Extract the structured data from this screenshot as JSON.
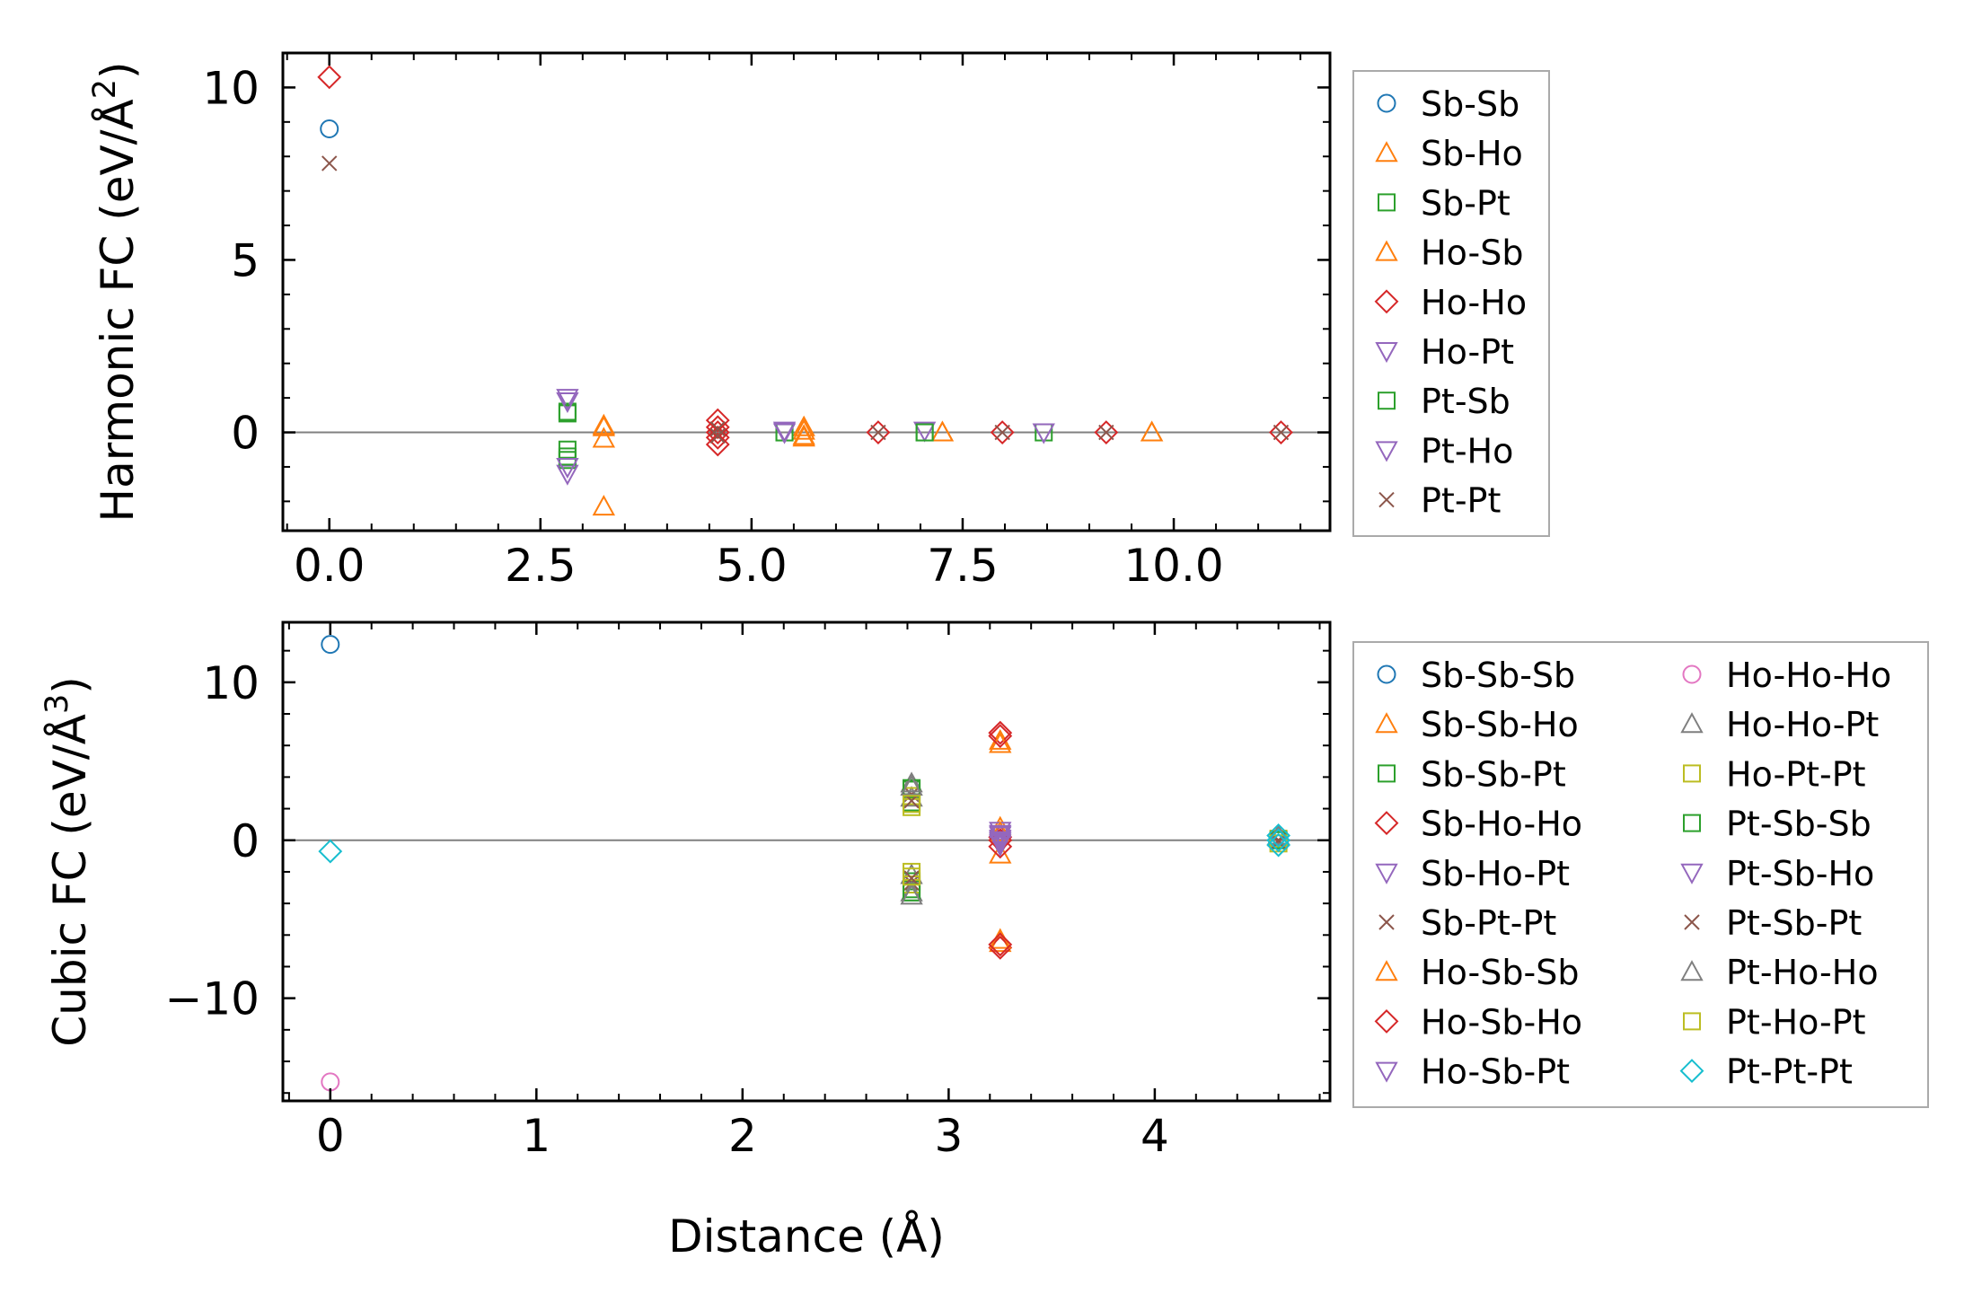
{
  "colors": {
    "C0": "#1f77b4",
    "C1": "#ff7f0e",
    "C2": "#2ca02c",
    "C3": "#d62728",
    "C4": "#9467bd",
    "C5": "#8c564b",
    "C6": "#e377c2",
    "C7": "#7f7f7f",
    "C8": "#bcbd22",
    "C9": "#17becf",
    "zero_line": "#808080",
    "legend_border": "#aaaaaa"
  },
  "chart_data": [
    {
      "type": "scatter",
      "ylabel_prefix": "Harmonic FC (eV/Å",
      "ylabel_sup": "2",
      "ylabel_suffix": ")",
      "xlabel": "",
      "xlim": [
        -0.55,
        11.85
      ],
      "ylim": [
        -2.85,
        11.0
      ],
      "xticks": [
        0.0,
        2.5,
        5.0,
        7.5,
        10.0
      ],
      "xtick_labels": [
        "0.0",
        "2.5",
        "5.0",
        "7.5",
        "10.0"
      ],
      "xminor": 0.5,
      "yticks": [
        0,
        5,
        10
      ],
      "ytick_labels": [
        "0",
        "5",
        "10"
      ],
      "yminor": 1,
      "zero_line": true,
      "legend_columns": 1,
      "legend_location": "outside-right",
      "series": [
        {
          "name": "Sb-Sb",
          "marker": "circle",
          "color": "C0",
          "x": [
            0.0
          ],
          "y": [
            8.8
          ]
        },
        {
          "name": "Sb-Ho",
          "marker": "triangle-up",
          "color": "C1",
          "x": [
            3.25,
            3.25,
            3.25,
            5.62,
            5.62,
            7.26,
            9.74
          ],
          "y": [
            0.15,
            -0.18,
            -2.15,
            0.15,
            -0.1,
            0.0,
            0.0
          ]
        },
        {
          "name": "Sb-Pt",
          "marker": "square",
          "color": "C2",
          "x": [
            2.82,
            2.82,
            2.82,
            5.39,
            7.05,
            8.46
          ],
          "y": [
            0.6,
            -0.5,
            -0.8,
            0.0,
            0.0,
            0.0
          ]
        },
        {
          "name": "Ho-Sb",
          "marker": "triangle-up",
          "color": "C1",
          "x": [
            3.25,
            5.62,
            5.62,
            7.26,
            9.74
          ],
          "y": [
            0.2,
            0.05,
            -0.15,
            0.0,
            0.0
          ]
        },
        {
          "name": "Ho-Ho",
          "marker": "diamond",
          "color": "C3",
          "x": [
            0.0,
            4.6,
            4.6,
            4.6,
            4.6,
            4.6,
            6.5,
            7.97,
            9.2,
            11.27
          ],
          "y": [
            10.3,
            0.35,
            0.15,
            0.0,
            -0.15,
            -0.35,
            0.0,
            0.0,
            0.0,
            0.0
          ]
        },
        {
          "name": "Ho-Pt",
          "marker": "triangle-down",
          "color": "C4",
          "x": [
            2.82,
            2.82,
            5.39,
            7.05,
            8.46
          ],
          "y": [
            1.0,
            -1.2,
            0.05,
            0.05,
            0.0
          ]
        },
        {
          "name": "Pt-Sb",
          "marker": "square",
          "color": "C2",
          "x": [
            2.82,
            2.82,
            5.39,
            7.05
          ],
          "y": [
            0.55,
            -0.7,
            0.0,
            0.0
          ]
        },
        {
          "name": "Pt-Ho",
          "marker": "triangle-down",
          "color": "C4",
          "x": [
            2.82,
            2.82,
            5.39
          ],
          "y": [
            0.9,
            -1.0,
            0.0
          ]
        },
        {
          "name": "Pt-Pt",
          "marker": "x",
          "color": "C5",
          "x": [
            0.0,
            4.6,
            4.6,
            6.5,
            7.97,
            9.2,
            11.27
          ],
          "y": [
            7.8,
            0.1,
            -0.1,
            0.0,
            0.0,
            0.0,
            0.0
          ]
        }
      ]
    },
    {
      "type": "scatter",
      "ylabel_prefix": "Cubic FC (eV/Å",
      "ylabel_sup": "3",
      "ylabel_suffix": ")",
      "xlabel": "Distance (Å)",
      "xlim": [
        -0.23,
        4.85
      ],
      "ylim": [
        -16.5,
        13.8
      ],
      "xticks": [
        0,
        1,
        2,
        3,
        4
      ],
      "xtick_labels": [
        "0",
        "1",
        "2",
        "3",
        "4"
      ],
      "xminor": 0.2,
      "yticks": [
        -10,
        0,
        10
      ],
      "ytick_labels": [
        "−10",
        "0",
        "10"
      ],
      "yminor": 2,
      "zero_line": true,
      "legend_columns": 2,
      "legend_location": "outside-right",
      "series": [
        {
          "name": "Sb-Sb-Sb",
          "marker": "circle",
          "color": "C0",
          "x": [
            0.0
          ],
          "y": [
            12.4
          ]
        },
        {
          "name": "Sb-Sb-Ho",
          "marker": "triangle-up",
          "color": "C1",
          "x": [
            3.25,
            3.25,
            3.25,
            3.25
          ],
          "y": [
            6.3,
            0.8,
            -0.9,
            -6.5
          ]
        },
        {
          "name": "Sb-Sb-Pt",
          "marker": "square",
          "color": "C2",
          "x": [
            2.82,
            2.82,
            2.82,
            2.82
          ],
          "y": [
            3.2,
            2.4,
            -2.6,
            -3.1
          ]
        },
        {
          "name": "Sb-Ho-Ho",
          "marker": "diamond",
          "color": "C3",
          "x": [
            3.25,
            3.25,
            3.25,
            3.25
          ],
          "y": [
            6.8,
            0.2,
            -0.4,
            -6.8
          ]
        },
        {
          "name": "Sb-Ho-Pt",
          "marker": "triangle-down",
          "color": "C4",
          "x": [
            3.25,
            3.25,
            3.25
          ],
          "y": [
            0.6,
            0.1,
            -0.3
          ]
        },
        {
          "name": "Sb-Pt-Pt",
          "marker": "x",
          "color": "C5",
          "x": [
            2.82,
            2.82,
            4.6
          ],
          "y": [
            2.9,
            -2.7,
            0.0
          ]
        },
        {
          "name": "Ho-Sb-Sb",
          "marker": "triangle-up",
          "color": "C1",
          "x": [
            3.25,
            3.25,
            3.25
          ],
          "y": [
            6.1,
            0.5,
            -6.3
          ]
        },
        {
          "name": "Ho-Sb-Ho",
          "marker": "diamond",
          "color": "C3",
          "x": [
            3.25,
            3.25,
            3.25
          ],
          "y": [
            6.6,
            0.0,
            -6.6
          ]
        },
        {
          "name": "Ho-Sb-Pt",
          "marker": "triangle-down",
          "color": "C4",
          "x": [
            3.25,
            3.25
          ],
          "y": [
            0.4,
            -0.2
          ]
        },
        {
          "name": "Ho-Ho-Ho",
          "marker": "circle",
          "color": "C6",
          "x": [
            0.0
          ],
          "y": [
            -15.3
          ]
        },
        {
          "name": "Ho-Ho-Pt",
          "marker": "triangle-up",
          "color": "C7",
          "x": [
            2.82,
            2.82,
            2.82,
            2.82,
            4.6
          ],
          "y": [
            3.6,
            2.7,
            -2.2,
            -3.3,
            0.2
          ]
        },
        {
          "name": "Ho-Pt-Pt",
          "marker": "square",
          "color": "C8",
          "x": [
            2.82,
            2.82,
            2.82,
            2.82,
            4.6
          ],
          "y": [
            2.8,
            2.1,
            -2.0,
            -2.8,
            0.1
          ]
        },
        {
          "name": "Pt-Sb-Sb",
          "marker": "square",
          "color": "C2",
          "x": [
            2.82,
            2.82,
            4.6
          ],
          "y": [
            3.3,
            -3.3,
            0.0
          ]
        },
        {
          "name": "Pt-Sb-Ho",
          "marker": "triangle-down",
          "color": "C4",
          "x": [
            3.25,
            3.25,
            3.25
          ],
          "y": [
            0.3,
            0.0,
            -0.1
          ]
        },
        {
          "name": "Pt-Sb-Pt",
          "marker": "x",
          "color": "C5",
          "x": [
            2.82,
            2.82,
            4.6
          ],
          "y": [
            2.5,
            -2.4,
            -0.1
          ]
        },
        {
          "name": "Pt-Ho-Ho",
          "marker": "triangle-up",
          "color": "C7",
          "x": [
            2.82,
            2.82,
            4.6
          ],
          "y": [
            3.4,
            -3.5,
            0.3
          ]
        },
        {
          "name": "Pt-Ho-Pt",
          "marker": "square",
          "color": "C8",
          "x": [
            2.82,
            2.82,
            4.6
          ],
          "y": [
            2.3,
            -2.3,
            -0.2
          ]
        },
        {
          "name": "Pt-Pt-Pt",
          "marker": "diamond",
          "color": "C9",
          "x": [
            0.0,
            4.6,
            4.6,
            4.6
          ],
          "y": [
            -0.7,
            0.3,
            0.0,
            -0.3
          ]
        }
      ]
    }
  ]
}
